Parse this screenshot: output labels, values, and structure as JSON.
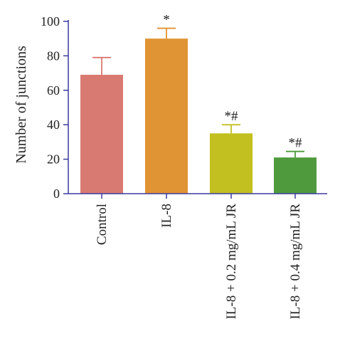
{
  "chart_data": {
    "type": "bar",
    "ylabel": "Number of junctions",
    "xlabel": "",
    "title": "",
    "ylim": [
      0,
      100
    ],
    "yticks": [
      0,
      20,
      40,
      60,
      80,
      100
    ],
    "categories": [
      "Control",
      "IL-8",
      "IL-8 + 0.2 mg/mL JR",
      "IL-8 + 0.4 mg/mL JR"
    ],
    "values": [
      69,
      90,
      35,
      21
    ],
    "errors": [
      10,
      6,
      5,
      3.5
    ],
    "significance": [
      "",
      "*",
      "*#",
      "*#"
    ],
    "colors": [
      "#d97a72",
      "#e09433",
      "#c2c020",
      "#4f9a3c"
    ],
    "axis_color": "#3a3aa0",
    "grid": false,
    "legend": "none"
  }
}
